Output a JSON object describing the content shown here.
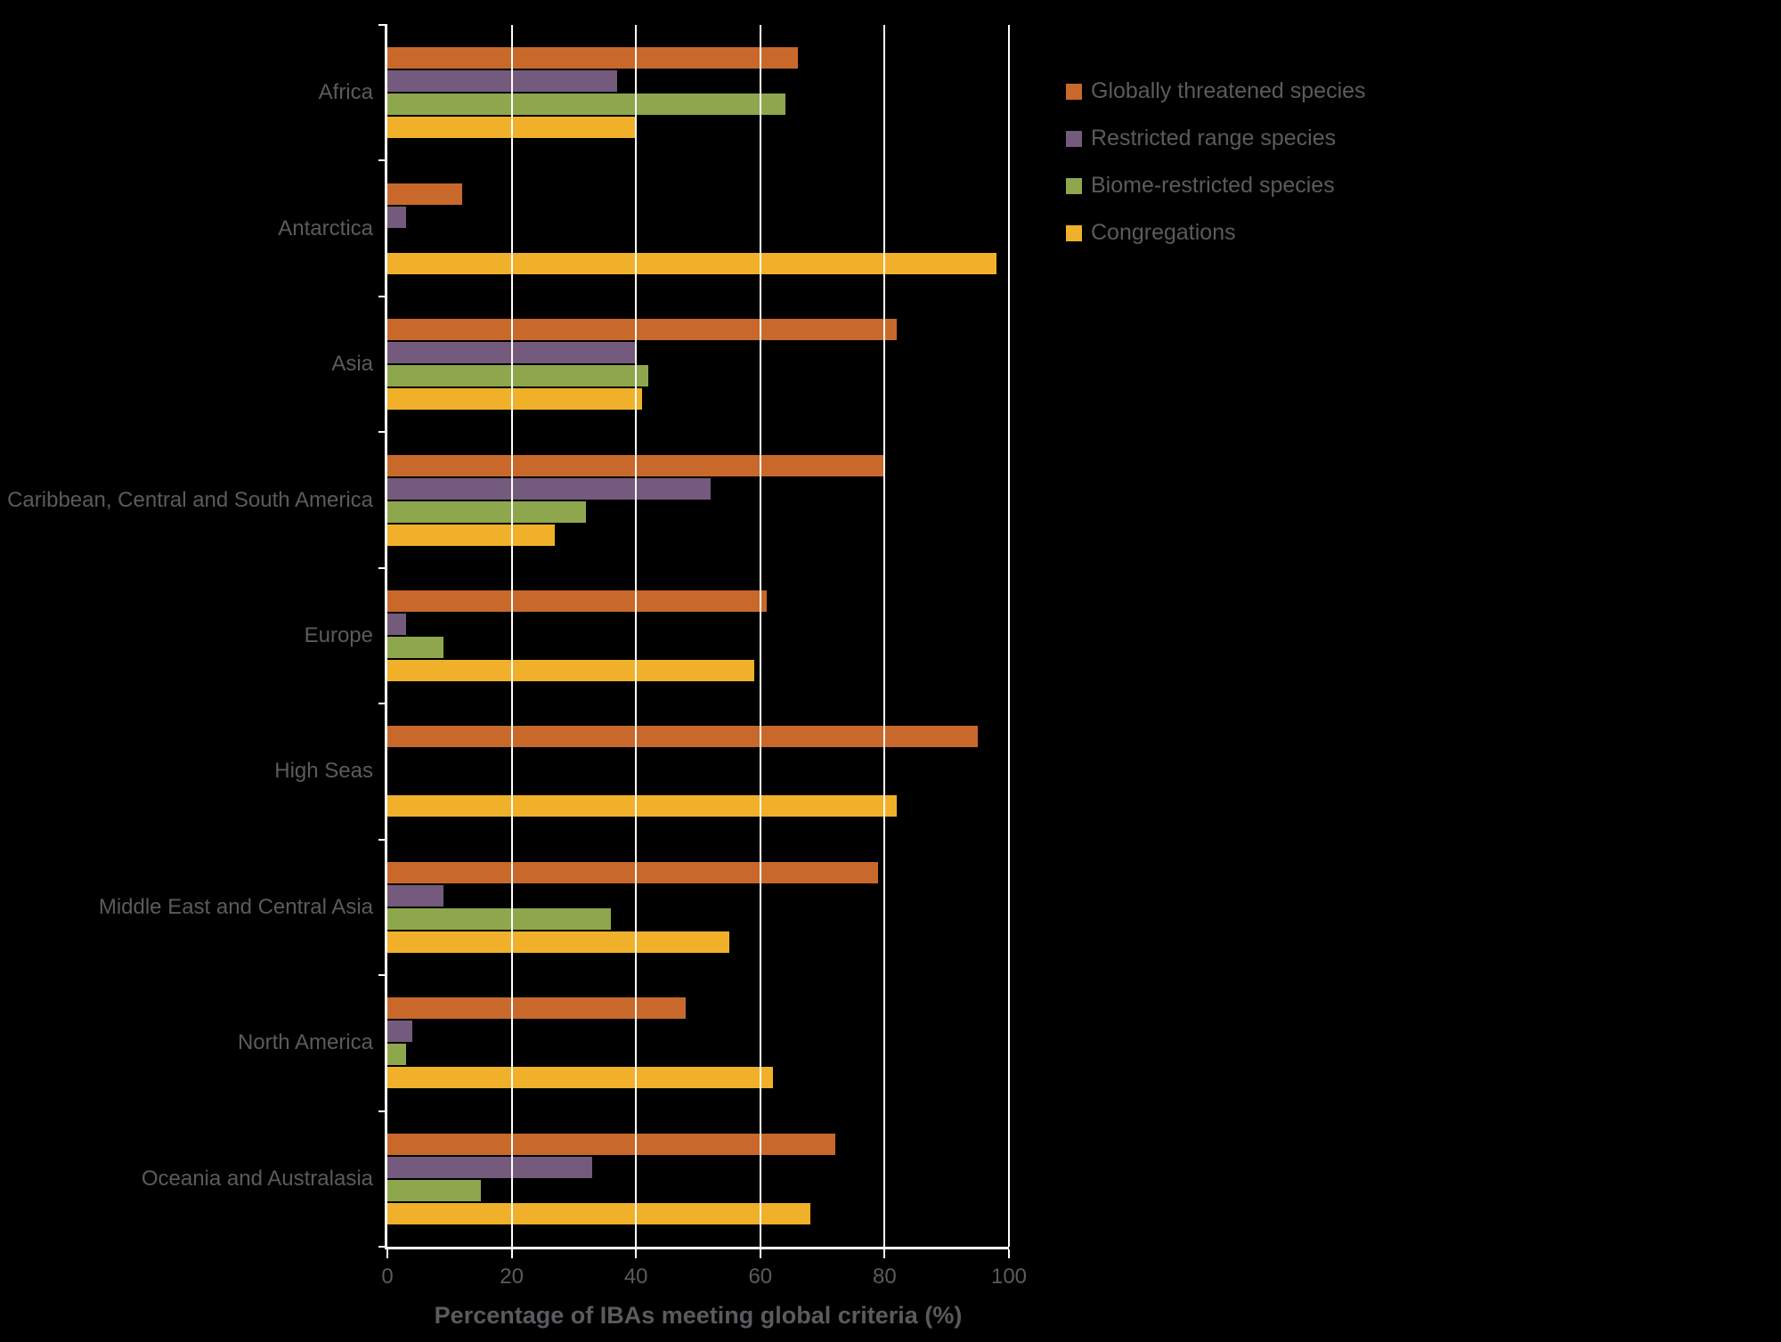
{
  "chart_data": {
    "type": "bar",
    "orientation": "horizontal",
    "title": "",
    "xlabel": "Percentage of IBAs meeting global criteria (%)",
    "ylabel": "",
    "xlim": [
      0,
      100
    ],
    "xticks": [
      0,
      20,
      40,
      60,
      80,
      100
    ],
    "grid": true,
    "legend_position": "top-right",
    "categories": [
      "Africa",
      "Antarctica",
      "Asia",
      "Caribbean, Central and South America",
      "Europe",
      "High Seas",
      "Middle East and Central Asia",
      "North America",
      "Oceania and Australasia"
    ],
    "series": [
      {
        "name": "Globally threatened species",
        "color": "#c8692b",
        "values": [
          66,
          12,
          82,
          80,
          61,
          95,
          79,
          48,
          72
        ]
      },
      {
        "name": "Restricted range species",
        "color": "#745a7c",
        "values": [
          37,
          3,
          40,
          52,
          3,
          0,
          9,
          4,
          33
        ]
      },
      {
        "name": "Biome-restricted species",
        "color": "#8ea74d",
        "values": [
          64,
          0,
          42,
          32,
          9,
          0,
          36,
          3,
          15
        ]
      },
      {
        "name": "Congregations",
        "color": "#f0b02a",
        "values": [
          40,
          98,
          41,
          27,
          59,
          82,
          55,
          62,
          68
        ]
      }
    ]
  },
  "colors": {
    "background": "#000000",
    "text": "#5a5b5e",
    "axis": "#ffffff",
    "grid": "#ffffff"
  }
}
